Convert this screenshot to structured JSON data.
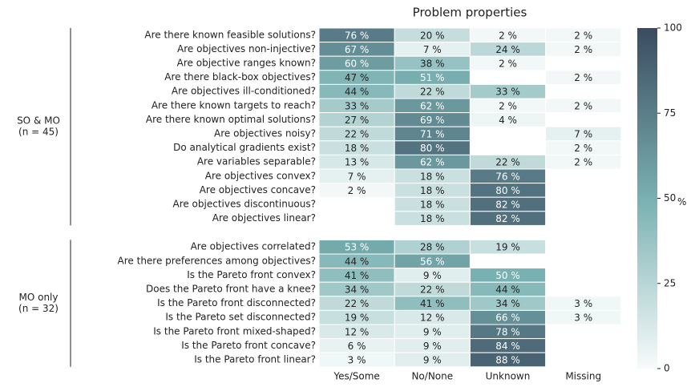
{
  "chart_data": {
    "type": "heatmap",
    "title": "Problem properties",
    "columns": [
      "Yes/Some",
      "No/None",
      "Unknown",
      "Missing"
    ],
    "groups": [
      {
        "label": [
          "SO & MO",
          "(n = 45)"
        ],
        "rows": [
          "Are there known feasible solutions?",
          "Are objectives non-injective?",
          "Are objective ranges known?",
          "Are there black-box objectives?",
          "Are objectives ill-conditioned?",
          "Are there known targets to reach?",
          "Are there known optimal solutions?",
          "Are objectives noisy?",
          "Do analytical gradients exist?",
          "Are variables separable?",
          "Are objectives convex?",
          "Are objectives concave?",
          "Are objectives discontinuous?",
          "Are objectives linear?"
        ],
        "values": [
          [
            76,
            20,
            2,
            2
          ],
          [
            67,
            7,
            24,
            2
          ],
          [
            60,
            38,
            2,
            null
          ],
          [
            47,
            51,
            null,
            2
          ],
          [
            44,
            22,
            33,
            null
          ],
          [
            33,
            62,
            2,
            2
          ],
          [
            27,
            69,
            4,
            null
          ],
          [
            22,
            71,
            null,
            7
          ],
          [
            18,
            80,
            null,
            2
          ],
          [
            13,
            62,
            22,
            2
          ],
          [
            7,
            18,
            76,
            null
          ],
          [
            2,
            18,
            80,
            null
          ],
          [
            null,
            18,
            82,
            null
          ],
          [
            null,
            18,
            82,
            null
          ]
        ],
        "value_labels": [
          [
            "76 %",
            "20 %",
            "2 %",
            "2 %"
          ],
          [
            "67 %",
            "7 %",
            "24 %",
            "2 %"
          ],
          [
            "60 %",
            "38 %",
            "2 %",
            null
          ],
          [
            "47 %",
            "51 %",
            null,
            "2 %"
          ],
          [
            "44 %",
            "22 %",
            "33 %",
            null
          ],
          [
            "33 %",
            "62 %",
            "2 %",
            "2 %"
          ],
          [
            "27 %",
            "69 %",
            "4 %",
            null
          ],
          [
            "22 %",
            "71 %",
            null,
            "7 %"
          ],
          [
            "18 %",
            "80 %",
            null,
            "2 %"
          ],
          [
            "13 %",
            "62 %",
            "22 %",
            "2 %"
          ],
          [
            "7 %",
            "18 %",
            "76 %",
            null
          ],
          [
            "2 %",
            "18 %",
            "80 %",
            null
          ],
          [
            null,
            "18 %",
            "82 %",
            null
          ],
          [
            null,
            "18 %",
            "82 %",
            null
          ]
        ]
      },
      {
        "label": [
          "MO only",
          "(n = 32)"
        ],
        "rows": [
          "Are objectives correlated?",
          "Are there preferences among objectives?",
          "Is the Pareto front convex?",
          "Does the Pareto front have a knee?",
          "Is the Pareto front disconnected?",
          "Is the Pareto set disconnected?",
          "Is the Pareto front mixed-shaped?",
          "Is the Pareto front concave?",
          "Is the Pareto front linear?"
        ],
        "values": [
          [
            53,
            28,
            19,
            null
          ],
          [
            44,
            56,
            null,
            null
          ],
          [
            41,
            9,
            50,
            null
          ],
          [
            34,
            22,
            44,
            null
          ],
          [
            22,
            41,
            34,
            3
          ],
          [
            19,
            12,
            66,
            3
          ],
          [
            12,
            9,
            78,
            null
          ],
          [
            6,
            9,
            84,
            null
          ],
          [
            3,
            9,
            88,
            null
          ]
        ],
        "value_labels": [
          [
            "53 %",
            "28 %",
            "19 %",
            null
          ],
          [
            "44 %",
            "56 %",
            null,
            null
          ],
          [
            "41 %",
            "9 %",
            "50 %",
            null
          ],
          [
            "34 %",
            "22 %",
            "44 %",
            null
          ],
          [
            "22 %",
            "41 %",
            "34 %",
            "3 %"
          ],
          [
            "19 %",
            "12 %",
            "66 %",
            "3 %"
          ],
          [
            "12 %",
            "9 %",
            "78 %",
            null
          ],
          [
            "6 %",
            "9 %",
            "84 %",
            null
          ],
          [
            "3 %",
            "9 %",
            "88 %",
            null
          ]
        ]
      }
    ],
    "clim": [
      0,
      100
    ],
    "cticks": [
      0,
      25,
      50,
      75,
      100
    ],
    "colorbar_label": "%",
    "colorscale": [
      "#f7fbfb",
      "#79b0b1",
      "#3b4b60"
    ]
  }
}
